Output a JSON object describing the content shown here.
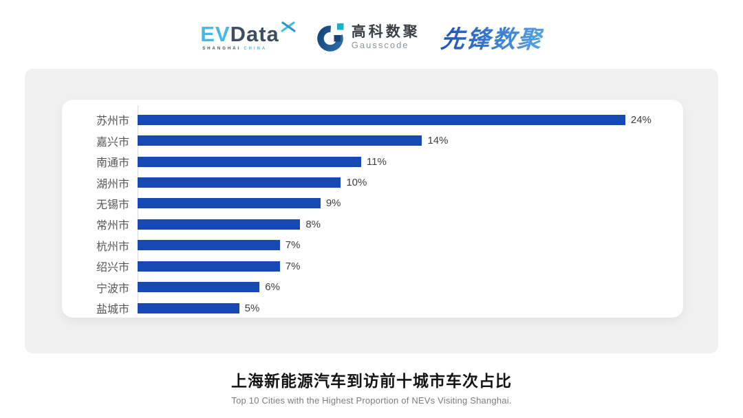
{
  "header": {
    "evdata_logo": {
      "ev": "EV",
      "data": "Data",
      "tagline_left": "SHANGHAI",
      "tagline_right": "CHINA"
    },
    "gausscode_logo": {
      "cn": "高科数聚",
      "en": "Gausscode"
    },
    "pioneer_logo": {
      "text": "先锋数聚"
    }
  },
  "chart_data": {
    "type": "bar",
    "orientation": "horizontal",
    "title": "上海新能源汽车到访前十城市车次占比",
    "subtitle": "Top 10 Cities with the Highest Proportion of  NEVs Visiting Shanghai.",
    "categories": [
      "苏州市",
      "嘉兴市",
      "南通市",
      "湖州市",
      "无锡市",
      "常州市",
      "杭州市",
      "绍兴市",
      "宁波市",
      "盐城市"
    ],
    "values": [
      24,
      14,
      11,
      10,
      9,
      8,
      7,
      7,
      6,
      5
    ],
    "value_labels": [
      "24%",
      "14%",
      "11%",
      "10%",
      "9%",
      "8%",
      "7%",
      "7%",
      "6%",
      "5%"
    ],
    "xlim": [
      0,
      26.85
    ],
    "grid": false,
    "legend": "none",
    "bar_color": "#1649b4",
    "axis_line_color": "#d9d9d9",
    "category_label_color": "#555555",
    "value_label_color": "#3d3d3d"
  },
  "caption": {
    "title": "上海新能源汽车到访前十城市车次占比",
    "subtitle": "Top 10 Cities with the Highest Proportion of  NEVs Visiting Shanghai."
  }
}
